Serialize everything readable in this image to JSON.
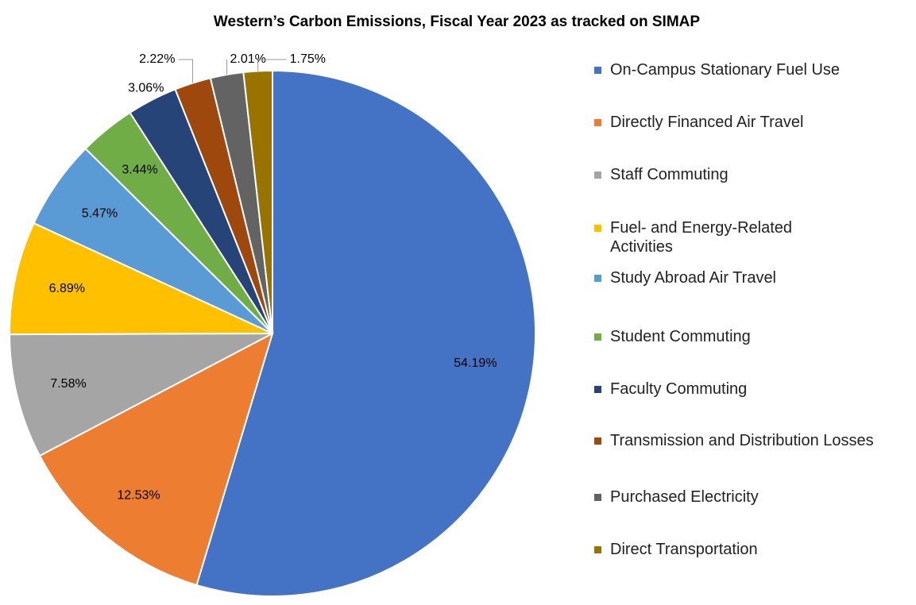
{
  "chart_data": {
    "type": "pie",
    "title": "Western’s Carbon Emissions, Fiscal Year 2023 as tracked on SIMAP",
    "categories": [
      "On-Campus Stationary Fuel Use",
      "Directly Financed Air Travel",
      "Staff Commuting",
      "Fuel- and Energy-Related Activities",
      "Study Abroad Air Travel",
      "Student Commuting",
      "Faculty Commuting",
      "Transmission and Distribution Losses",
      "Purchased Electricity",
      "Direct Transportation"
    ],
    "values": [
      54.19,
      12.53,
      7.58,
      6.89,
      5.47,
      3.44,
      3.06,
      2.22,
      2.01,
      1.75
    ],
    "value_labels": [
      "54.19%",
      "12.53%",
      "7.58%",
      "6.89%",
      "5.47%",
      "3.44%",
      "3.06%",
      "2.22%",
      "2.01%",
      "1.75%"
    ],
    "colors": [
      "#4472c4",
      "#ed7d31",
      "#a5a5a5",
      "#ffc000",
      "#5b9bd5",
      "#70ad47",
      "#264478",
      "#9e480e",
      "#636363",
      "#997300"
    ],
    "legend": "right"
  }
}
